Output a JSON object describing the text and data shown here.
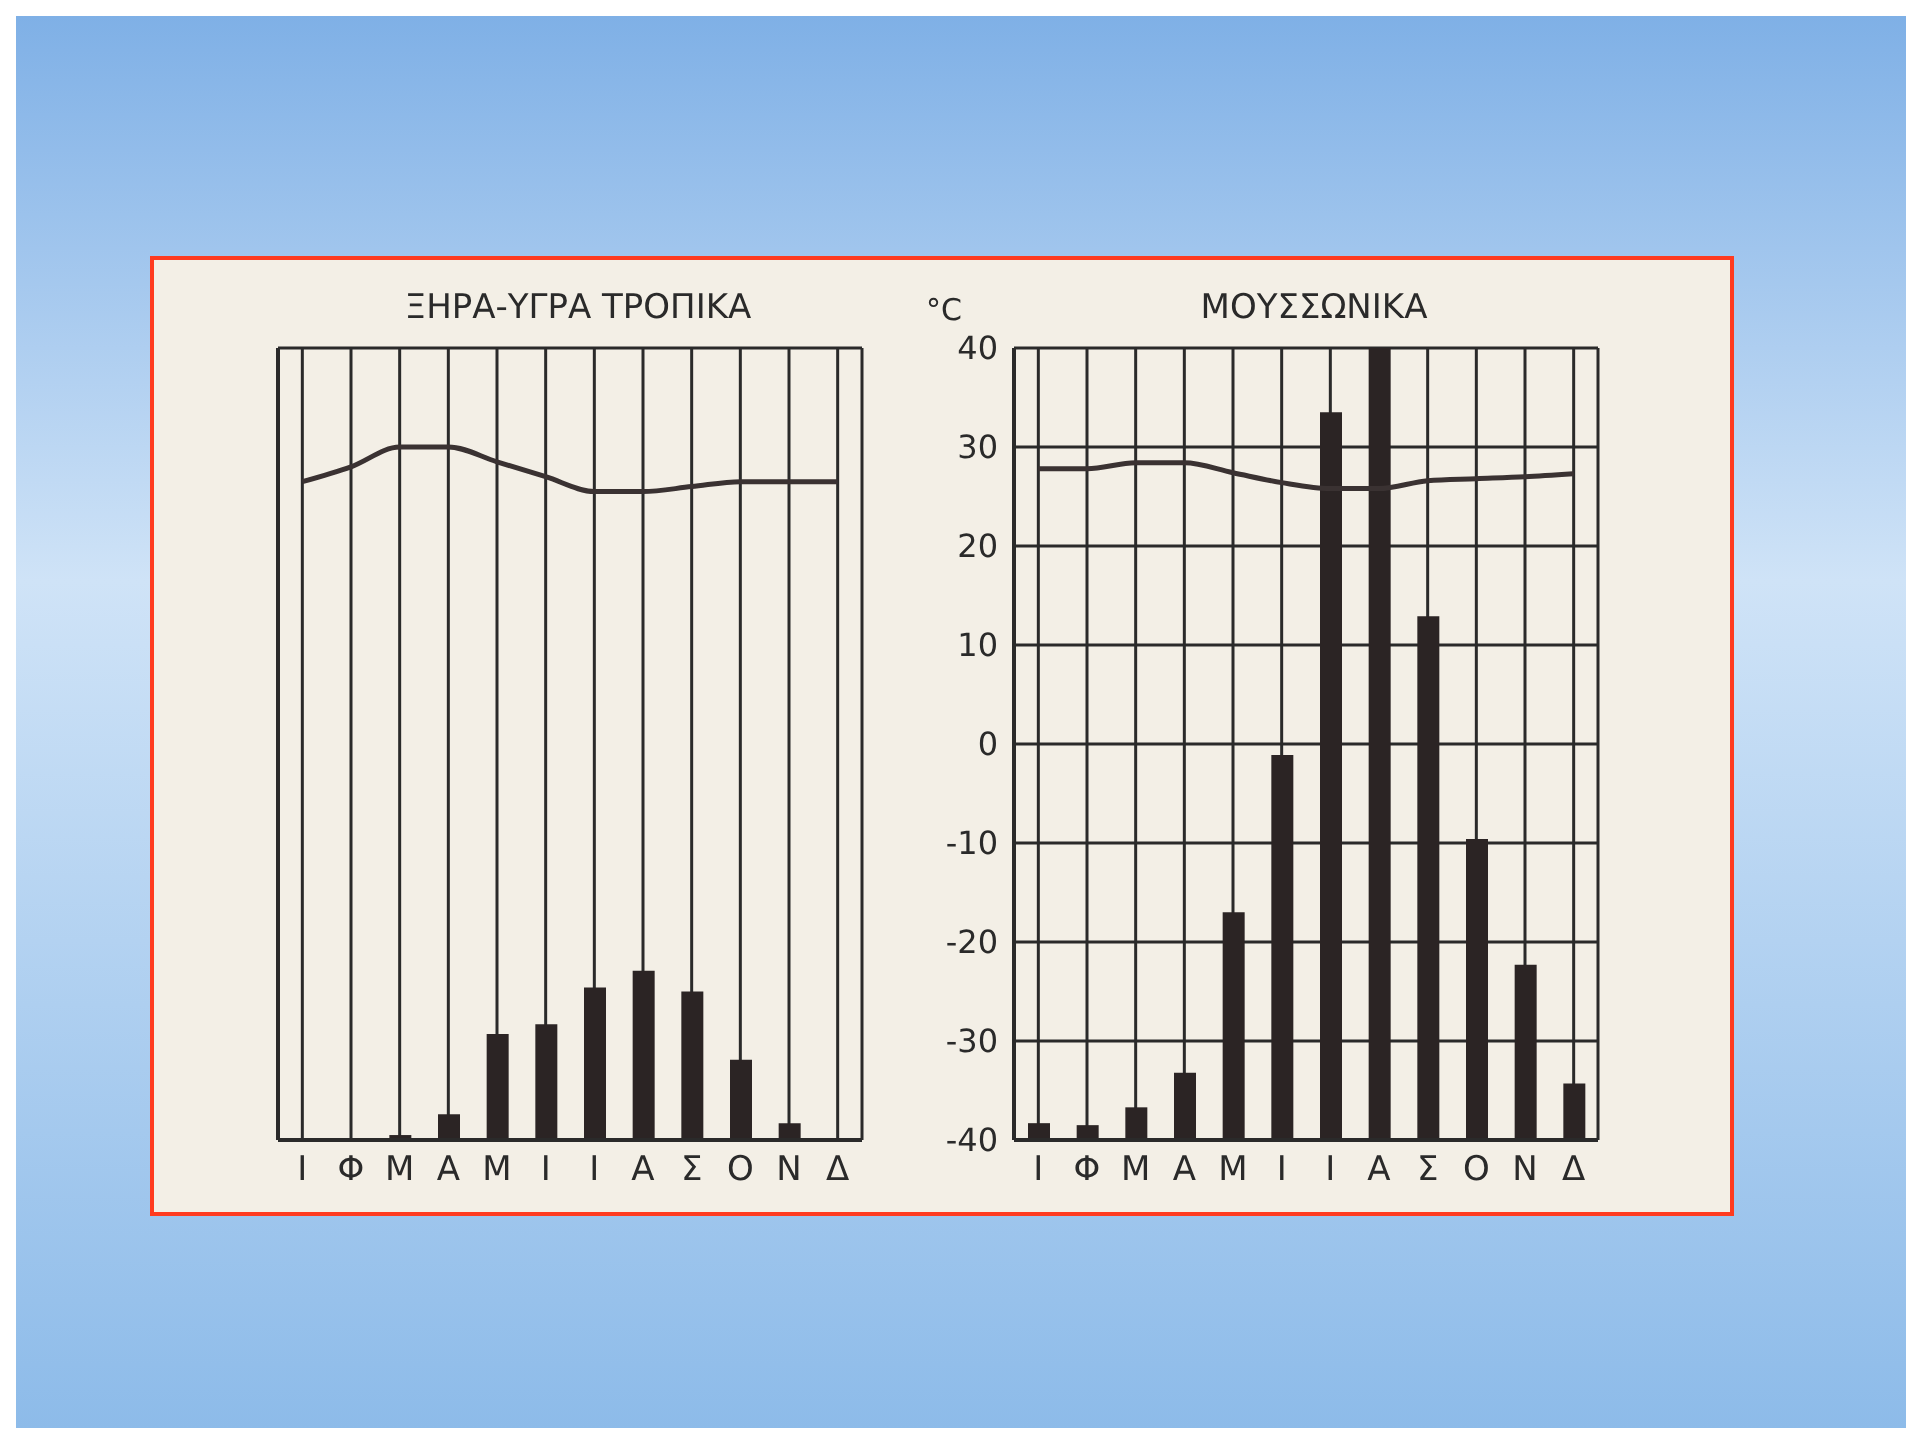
{
  "chart_data": [
    {
      "type": "bar",
      "title": "ΞΗΡΑ-ΥΓΡΑ ΤΡΟΠΙΚΑ",
      "categories": [
        "Ι",
        "Φ",
        "Μ",
        "Α",
        "Μ",
        "Ι",
        "Ι",
        "Α",
        "Σ",
        "Ο",
        "Ν",
        "Δ"
      ],
      "series": [
        {
          "color": "#2b2424",
          "base": [
            null,
            null,
            -40,
            -40,
            -40,
            -40,
            -40,
            -40,
            -40,
            -40,
            -40,
            null
          ],
          "values": [
            null,
            null,
            0.5,
            2.6,
            10.7,
            11.7,
            15.4,
            17.1,
            15,
            8.1,
            1.7,
            null
          ]
        },
        {
          "type": "line",
          "color": "#3a3232",
          "values": [
            26.5,
            28,
            30,
            30,
            28.5,
            27,
            25.5,
            25.5,
            26,
            26.5,
            26.5,
            26.5
          ]
        }
      ],
      "ylim": [
        -40,
        40
      ],
      "yticks": [
        -40,
        -30,
        -20,
        -10,
        0,
        10,
        20,
        30,
        40
      ],
      "grid": true,
      "tick_labels": "x",
      "marker": "none",
      "line_style": "solid"
    },
    {
      "type": "bar",
      "title": "ΜΟΥΣΣΩΝΙΚΑ",
      "ylabel": "°C",
      "categories": [
        "Ι",
        "Φ",
        "Μ",
        "Α",
        "Μ",
        "Ι",
        "Ι",
        "Α",
        "Σ",
        "Ο",
        "Ν",
        "Δ"
      ],
      "series": [
        {
          "color": "#2b2424",
          "base": [
            -40,
            -40,
            -40,
            -40,
            -40,
            -40,
            -40,
            -40,
            -40,
            -40,
            -40,
            -40
          ],
          "values": [
            1.7,
            1.5,
            3.3,
            6.8,
            23,
            38.9,
            73.5,
            80,
            52.9,
            30.4,
            17.7,
            5.7
          ]
        },
        {
          "type": "line",
          "color": "#3a3232",
          "values": [
            27.8,
            27.8,
            28.4,
            28.4,
            27.4,
            26.4,
            25.8,
            25.8,
            26.6,
            26.8,
            27,
            27.3
          ]
        }
      ],
      "ylim": [
        -40,
        40
      ],
      "yticks": [
        -40,
        -30,
        -20,
        -10,
        0,
        10,
        20,
        30,
        40
      ],
      "grid": true,
      "marker": "none",
      "line_style": "solid"
    }
  ]
}
